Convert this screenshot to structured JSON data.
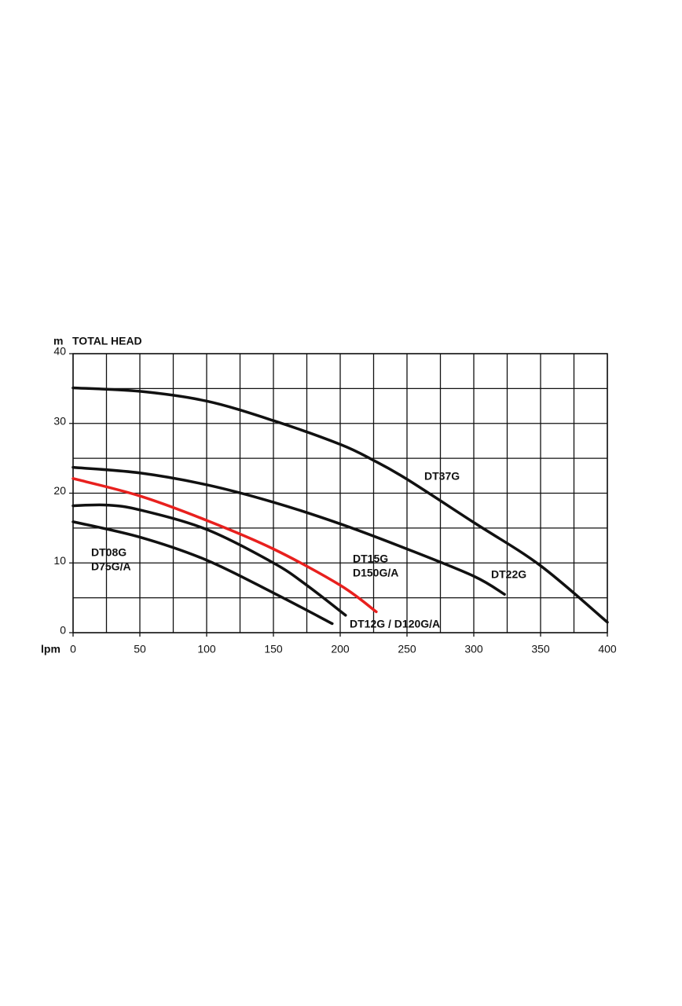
{
  "chart_data": {
    "type": "line",
    "title": "TOTAL HEAD",
    "y_unit": "m",
    "x_label": "lpm",
    "xlim": [
      0,
      400
    ],
    "xticks": [
      0,
      50,
      100,
      150,
      200,
      250,
      300,
      350,
      400
    ],
    "xminorticks": [
      25,
      75,
      125,
      175,
      225,
      275,
      325,
      375
    ],
    "ylim": [
      0,
      40
    ],
    "yticks": [
      0,
      10,
      20,
      30,
      40
    ],
    "yminorticks": [
      5,
      15,
      25,
      35
    ],
    "grid": true,
    "series": [
      {
        "label_lines": [
          "DT37G"
        ],
        "color": "#111111",
        "x": [
          0,
          50,
          100,
          150,
          200,
          225,
          250,
          300,
          350,
          400
        ],
        "values": [
          35.1,
          34.6,
          33.2,
          30.4,
          27.0,
          24.7,
          22.0,
          15.8,
          9.6,
          1.5
        ]
      },
      {
        "label_lines": [
          "DT22G"
        ],
        "color": "#111111",
        "x": [
          0,
          50,
          100,
          150,
          200,
          250,
          300,
          323
        ],
        "values": [
          23.7,
          22.9,
          21.2,
          18.7,
          15.6,
          12.0,
          8.1,
          5.5
        ]
      },
      {
        "label_lines": [
          "DT15G",
          "D150G/A"
        ],
        "color": "#e8201e",
        "x": [
          0,
          50,
          100,
          150,
          200,
          227
        ],
        "values": [
          22.1,
          19.6,
          16.1,
          12.0,
          6.8,
          3.0
        ]
      },
      {
        "label_lines": [
          "DT12G / D120G/A"
        ],
        "color": "#111111",
        "x": [
          0,
          25,
          50,
          100,
          150,
          175,
          204
        ],
        "values": [
          18.2,
          18.3,
          17.6,
          14.8,
          10.0,
          6.8,
          2.5
        ]
      },
      {
        "label_lines": [
          "DT08G",
          "D75G/A"
        ],
        "color": "#111111",
        "x": [
          0,
          50,
          100,
          150,
          194
        ],
        "values": [
          15.9,
          13.7,
          10.4,
          5.7,
          1.3
        ]
      }
    ]
  }
}
